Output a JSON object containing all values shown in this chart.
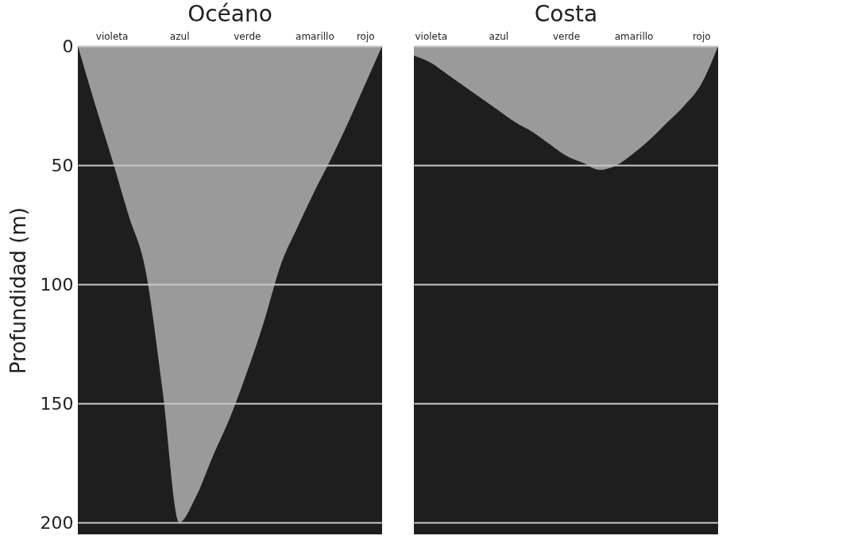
{
  "chart_data": [
    {
      "type": "area",
      "title": "Océano",
      "ylabel": "Profundidad (m)",
      "categories": [
        null,
        null,
        "violeta",
        null,
        null,
        null,
        "azul",
        null,
        null,
        null,
        "verde",
        null,
        null,
        null,
        "amarillo",
        null,
        null,
        "rojo",
        null
      ],
      "series": [
        {
          "color": "#9a9a9a",
          "values": [
            0,
            24,
            47,
            71,
            94,
            144,
            200,
            189,
            172,
            156,
            137,
            116,
            92,
            76,
            61,
            47,
            32,
            16,
            0
          ]
        }
      ],
      "ylim": [
        205,
        0
      ],
      "yticks": [
        0,
        50,
        100,
        150,
        200
      ],
      "grid": "y"
    },
    {
      "type": "area",
      "title": "Costa",
      "categories": [
        null,
        "violeta",
        null,
        null,
        null,
        "azul",
        null,
        null,
        null,
        "verde",
        null,
        null,
        null,
        "amarillo",
        null,
        null,
        null,
        "rojo",
        null
      ],
      "series": [
        {
          "color": "#9a9a9a",
          "values": [
            4,
            7,
            12,
            17,
            22,
            27,
            32,
            36,
            41,
            46,
            49,
            52,
            50,
            45,
            39,
            32,
            25,
            16,
            0
          ]
        }
      ],
      "ylim": [
        205,
        0
      ],
      "yticks": [
        0,
        50,
        100,
        150,
        200
      ],
      "grid": "y",
      "tick_labels": "x"
    }
  ]
}
